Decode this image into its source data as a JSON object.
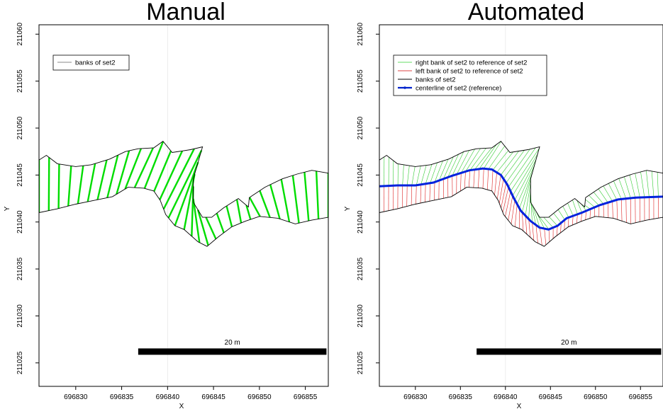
{
  "chart_data": [
    {
      "type": "line",
      "title": "Manual",
      "xlabel": "X",
      "ylabel": "Y",
      "xlim": [
        696826,
        696857.5
      ],
      "ylim": [
        211022.5,
        211061
      ],
      "xticks": [
        696830,
        696835,
        696840,
        696845,
        696850,
        696855
      ],
      "xtick_labels": [
        "696830",
        "696835",
        "696840",
        "696845",
        "696850",
        "696855"
      ],
      "yticks": [
        211025,
        211030,
        211035,
        211040,
        211045,
        211050,
        211055,
        211060
      ],
      "ytick_labels": [
        "211025",
        "211030",
        "211035",
        "211040",
        "211045",
        "211050",
        "211055",
        "211060"
      ],
      "grid": true,
      "legend_position": "top-left",
      "legend": [
        {
          "label": "banks of set2",
          "color": "#888888"
        }
      ],
      "scalebar": {
        "label": "20 m",
        "x": [
          696836.8,
          696857.3
        ],
        "y": 211026.2
      },
      "colors": {
        "banks": "#000000",
        "transects": "#00dd00"
      },
      "series": [
        {
          "name": "banks of set2",
          "role": "right-bank",
          "x": [
            696826,
            696826.8,
            696828,
            696830,
            696831.7,
            696833.7,
            696835.4,
            696836.8,
            696838.5,
            696839.5,
            696840.5,
            696842.5,
            696843.8,
            696842.8,
            696842.8,
            696843.8,
            696844.8,
            696846.1,
            696847.7,
            696848.8,
            696848.9,
            696850.6,
            696852.5,
            696854.1,
            696855.7,
            696857.5
          ],
          "y": [
            211046.6,
            211047.1,
            211046.2,
            211045.9,
            211046.1,
            211046.7,
            211047.5,
            211047.8,
            211047.9,
            211048.6,
            211047.4,
            211047.7,
            211048,
            211044.6,
            211042.1,
            211040.5,
            211040.5,
            211041.5,
            211042.5,
            211041.6,
            211042.6,
            211043.7,
            211044.6,
            211045.1,
            211045.5,
            211045.2
          ]
        },
        {
          "name": "banks of set2",
          "role": "left-bank",
          "x": [
            696826,
            696828,
            696830,
            696832,
            696834,
            696835.7,
            696837.4,
            696838.5,
            696839.2,
            696839.8,
            696840.8,
            696841.8,
            696843.3,
            696844.3,
            696845.5,
            696847,
            696848.5,
            696850,
            696852,
            696853.9,
            696855.7,
            696857.5
          ],
          "y": [
            211041,
            211041.4,
            211041.9,
            211042.3,
            211042.7,
            211043.7,
            211043.6,
            211043.3,
            211042.3,
            211040.8,
            211039.6,
            211039.2,
            211037.9,
            211037.4,
            211038.4,
            211039.5,
            211040.1,
            211040.6,
            211040.4,
            211039.8,
            211040.2,
            211040.5
          ]
        }
      ]
    },
    {
      "type": "line",
      "title": "Automated",
      "xlabel": "X",
      "ylabel": "Y",
      "xlim": [
        696826,
        696857.5
      ],
      "ylim": [
        211022.5,
        211061
      ],
      "xticks": [
        696830,
        696835,
        696840,
        696845,
        696850,
        696855
      ],
      "xtick_labels": [
        "696830",
        "696835",
        "696840",
        "696845",
        "696850",
        "696855"
      ],
      "yticks": [
        211025,
        211030,
        211035,
        211040,
        211045,
        211050,
        211055,
        211060
      ],
      "ytick_labels": [
        "211025",
        "211030",
        "211035",
        "211040",
        "211045",
        "211050",
        "211055",
        "211060"
      ],
      "grid": true,
      "legend_position": "top-left",
      "legend": [
        {
          "label": "right bank of set2 to reference of set2",
          "color": "#66dd66"
        },
        {
          "label": "left bank of set2 to reference of set2",
          "color": "#dd4444"
        },
        {
          "label": "banks of set2",
          "color": "#000000"
        },
        {
          "label": "centerline of set2 (reference)",
          "color": "#0022cc"
        }
      ],
      "scalebar": {
        "label": "20 m",
        "x": [
          696836.8,
          696857.3
        ],
        "y": 211026.2
      },
      "colors": {
        "banks": "#000000",
        "right_links": "#33cc33",
        "left_links": "#dd2222",
        "centerline": "#0022dd"
      },
      "series": [
        {
          "name": "banks of set2",
          "role": "right-bank",
          "x": [
            696826,
            696826.8,
            696828,
            696830,
            696831.7,
            696833.7,
            696835.4,
            696836.8,
            696838.5,
            696839.5,
            696840.5,
            696842.5,
            696843.8,
            696842.8,
            696842.8,
            696843.8,
            696844.8,
            696846.1,
            696847.7,
            696848.8,
            696848.9,
            696850.6,
            696852.5,
            696854.1,
            696855.7,
            696857.5
          ],
          "y": [
            211046.6,
            211047.1,
            211046.2,
            211045.9,
            211046.1,
            211046.7,
            211047.5,
            211047.8,
            211047.9,
            211048.6,
            211047.4,
            211047.7,
            211048,
            211044.6,
            211042.1,
            211040.5,
            211040.5,
            211041.5,
            211042.5,
            211041.6,
            211042.6,
            211043.7,
            211044.6,
            211045.1,
            211045.5,
            211045.2
          ]
        },
        {
          "name": "banks of set2",
          "role": "left-bank",
          "x": [
            696826,
            696828,
            696830,
            696832,
            696834,
            696835.7,
            696837.4,
            696838.5,
            696839.2,
            696839.8,
            696840.8,
            696841.8,
            696843.3,
            696844.3,
            696845.5,
            696847,
            696848.5,
            696850,
            696852,
            696853.9,
            696855.7,
            696857.5
          ],
          "y": [
            211041,
            211041.4,
            211041.9,
            211042.3,
            211042.7,
            211043.7,
            211043.6,
            211043.3,
            211042.3,
            211040.8,
            211039.6,
            211039.2,
            211037.9,
            211037.4,
            211038.4,
            211039.5,
            211040.1,
            211040.6,
            211040.4,
            211039.8,
            211040.2,
            211040.5
          ]
        },
        {
          "name": "centerline of set2 (reference)",
          "role": "centerline",
          "x": [
            696826,
            696828,
            696830,
            696832,
            696834,
            696836,
            696837.5,
            696838.5,
            696839.5,
            696840.2,
            696840.9,
            696841.7,
            696842.8,
            696843.8,
            696844.8,
            696845.8,
            696846.8,
            696848.5,
            696850.5,
            696852.5,
            696854.5,
            696857.5
          ],
          "y": [
            211043.8,
            211043.9,
            211043.9,
            211044.2,
            211044.9,
            211045.5,
            211045.7,
            211045.6,
            211045,
            211044,
            211042.6,
            211041.2,
            211040.1,
            211039.4,
            211039.2,
            211039.6,
            211040.4,
            211041,
            211041.8,
            211042.4,
            211042.6,
            211042.7
          ]
        }
      ]
    }
  ]
}
